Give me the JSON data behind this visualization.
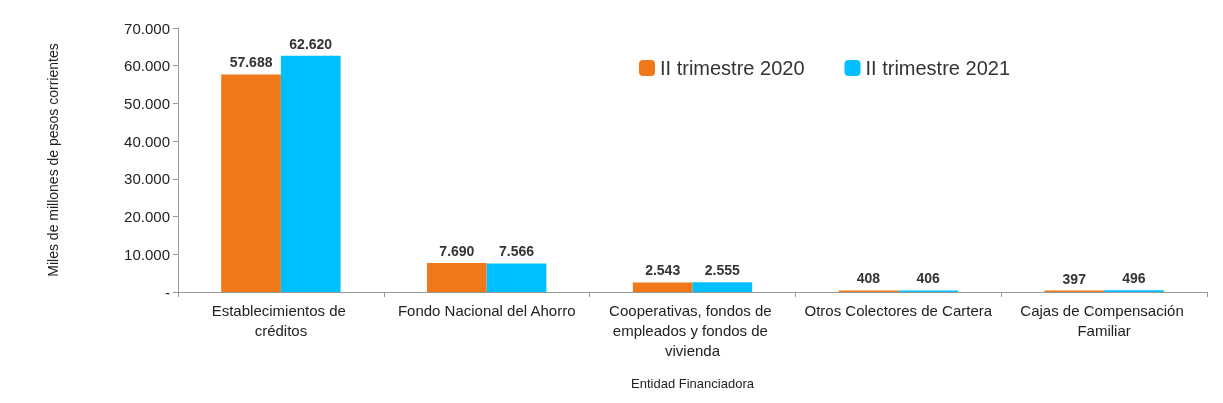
{
  "chart_data": {
    "type": "bar",
    "xlabel": "Entidad Financiadora",
    "ylabel": "Miles de millones de pesos corrientes",
    "categories": [
      "Establecimientos de créditos",
      "Fondo Nacional del Ahorro",
      "Cooperativas, fondos de empleados y fondos de vivienda",
      "Otros Colectores de Cartera",
      "Cajas de Compensación Familiar"
    ],
    "series": [
      {
        "name": "II trimestre 2020",
        "color": "#f07818",
        "values": [
          57688,
          7690,
          2543,
          408,
          397
        ],
        "value_labels": [
          "57.688",
          "7.690",
          "2.543",
          "408",
          "397"
        ]
      },
      {
        "name": "II trimestre 2021",
        "color": "#00bfff",
        "values": [
          62620,
          7566,
          2555,
          406,
          496
        ],
        "value_labels": [
          "62.620",
          "7.566",
          "2.555",
          "406",
          "496"
        ]
      }
    ],
    "ylim": [
      0,
      70000
    ],
    "yticks": [
      {
        "value": 0,
        "label": "-"
      },
      {
        "value": 10000,
        "label": "10.000"
      },
      {
        "value": 20000,
        "label": "20.000"
      },
      {
        "value": 30000,
        "label": "30.000"
      },
      {
        "value": 40000,
        "label": "40.000"
      },
      {
        "value": 50000,
        "label": "50.000"
      },
      {
        "value": 60000,
        "label": "60.000"
      },
      {
        "value": 70000,
        "label": "70.000"
      }
    ],
    "grid": false,
    "legend": "top right"
  }
}
